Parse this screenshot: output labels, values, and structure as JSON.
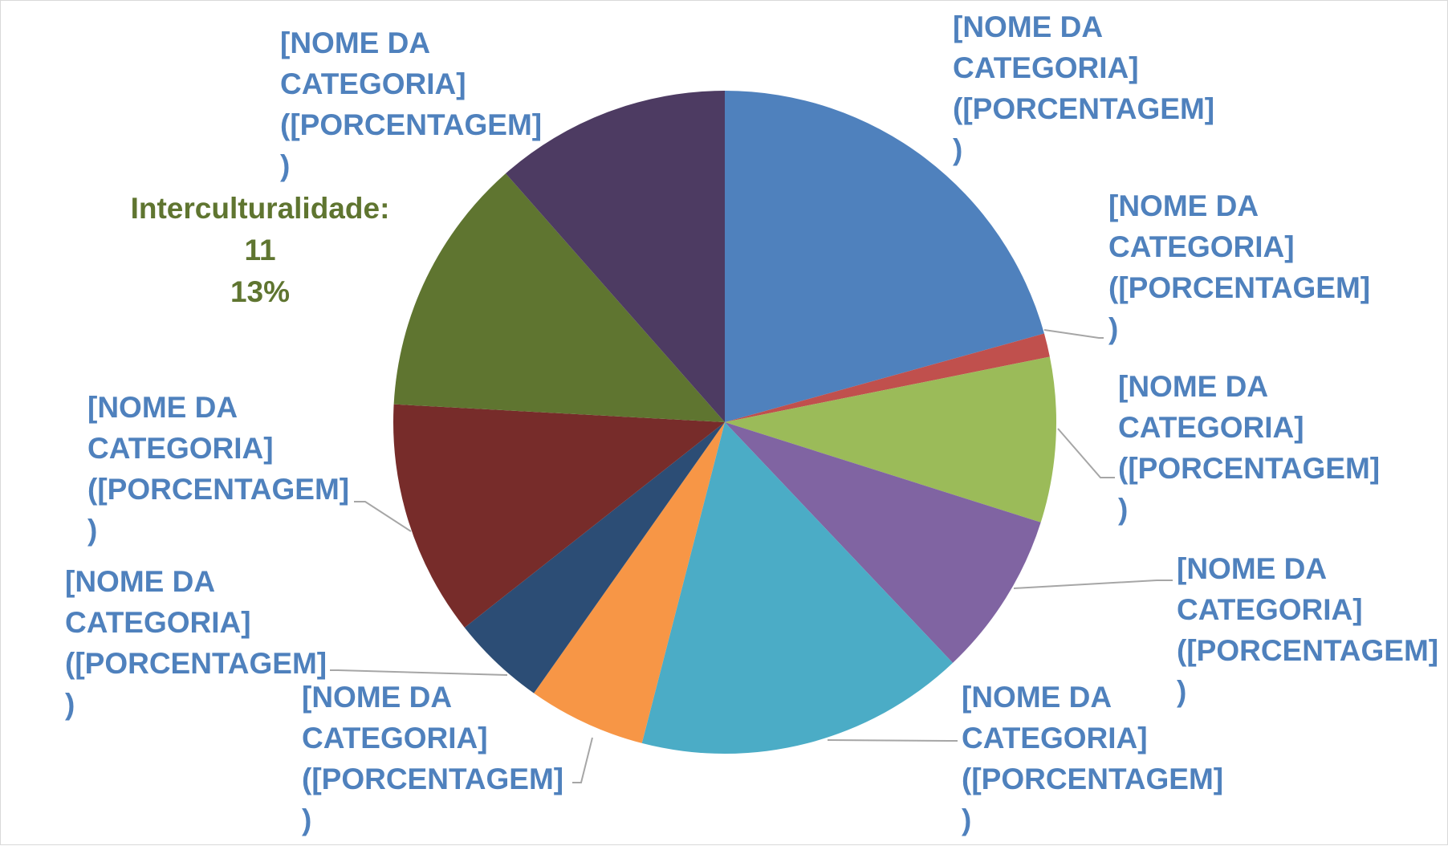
{
  "chart_data": {
    "type": "pie",
    "title": "",
    "legend": "none",
    "slices": [
      {
        "text": [
          "[NOME DA",
          "CATEGORIA]",
          "([PORCENTAGEM]",
          ")"
        ],
        "value": 18,
        "color": "#4F81BD"
      },
      {
        "text": [
          "[NOME DA",
          "CATEGORIA]",
          "([PORCENTAGEM]",
          ")"
        ],
        "value": 1,
        "color": "#C0504D"
      },
      {
        "text": [
          "[NOME DA",
          "CATEGORIA]",
          "([PORCENTAGEM]",
          ")"
        ],
        "value": 7,
        "color": "#9BBB59"
      },
      {
        "text": [
          "[NOME DA",
          "CATEGORIA]",
          "([PORCENTAGEM]",
          ")"
        ],
        "value": 7,
        "color": "#8064A2"
      },
      {
        "text": [
          "[NOME DA",
          "CATEGORIA]",
          "([PORCENTAGEM]",
          ")"
        ],
        "value": 14,
        "color": "#4BACC6"
      },
      {
        "text": [
          "[NOME DA",
          "CATEGORIA]",
          "([PORCENTAGEM]",
          ")"
        ],
        "value": 5,
        "color": "#F79646"
      },
      {
        "text": [
          "[NOME DA",
          "CATEGORIA]",
          "([PORCENTAGEM]",
          ")"
        ],
        "value": 4,
        "color": "#2C4D75"
      },
      {
        "text": [
          "[NOME DA",
          "CATEGORIA]",
          "([PORCENTAGEM]",
          ")"
        ],
        "value": 10,
        "color": "#772C2A"
      },
      {
        "text": [
          "Interculturalidade:",
          "11",
          "13%"
        ],
        "value": 11,
        "color": "#5F7530"
      },
      {
        "text": [
          "[NOME DA",
          "CATEGORIA]",
          "([PORCENTAGEM]",
          ")"
        ],
        "value": 10,
        "color": "#4D3B62"
      }
    ],
    "label_color": "#4F81BD",
    "leader_line_color": "#A6A6A6"
  }
}
